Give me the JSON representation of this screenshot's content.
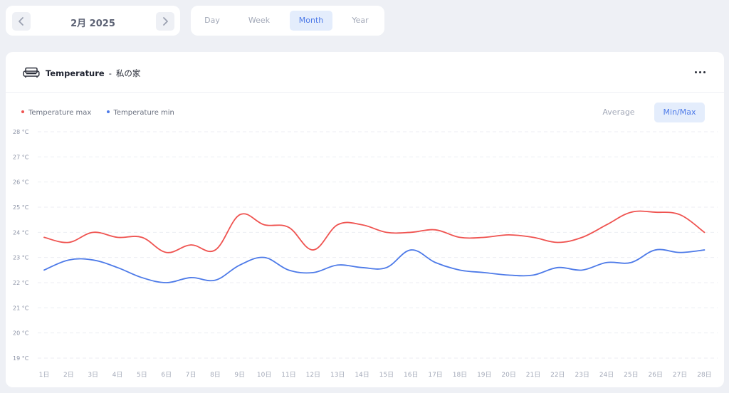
{
  "month_nav": {
    "label": "2月 2025"
  },
  "period_tabs": [
    {
      "label": "Day",
      "active": false
    },
    {
      "label": "Week",
      "active": false
    },
    {
      "label": "Month",
      "active": true
    },
    {
      "label": "Year",
      "active": false
    }
  ],
  "card": {
    "title": "Temperature",
    "separator": "-",
    "location": "私の家",
    "icon": "sofa-icon"
  },
  "mode_buttons": {
    "average": "Average",
    "minmax": "Min/Max",
    "active": "minmax"
  },
  "chart_data": {
    "type": "line",
    "x": [
      "1日",
      "2日",
      "3日",
      "4日",
      "5日",
      "6日",
      "7日",
      "8日",
      "9日",
      "10日",
      "11日",
      "12日",
      "13日",
      "14日",
      "15日",
      "16日",
      "17日",
      "18日",
      "19日",
      "20日",
      "21日",
      "22日",
      "23日",
      "24日",
      "25日",
      "26日",
      "27日",
      "28日"
    ],
    "series": [
      {
        "name": "Temperature max",
        "color": "#ef5350",
        "values": [
          23.8,
          23.6,
          24.0,
          23.8,
          23.8,
          23.2,
          23.5,
          23.3,
          24.7,
          24.3,
          24.2,
          23.3,
          24.3,
          24.3,
          24.0,
          24.0,
          24.1,
          23.8,
          23.8,
          23.9,
          23.8,
          23.6,
          23.8,
          24.3,
          24.8,
          24.8,
          24.7,
          24.0
        ]
      },
      {
        "name": "Temperature min",
        "color": "#4d7ae8",
        "values": [
          22.5,
          22.9,
          22.9,
          22.6,
          22.2,
          22.0,
          22.2,
          22.1,
          22.7,
          23.0,
          22.5,
          22.4,
          22.7,
          22.6,
          22.6,
          23.3,
          22.8,
          22.5,
          22.4,
          22.3,
          22.3,
          22.6,
          22.5,
          22.8,
          22.8,
          23.3,
          23.2,
          23.3
        ]
      }
    ],
    "yticks": [
      "19 °C",
      "20 °C",
      "21 °C",
      "22 °C",
      "23 °C",
      "24 °C",
      "25 °C",
      "26 °C",
      "27 °C",
      "28 °C"
    ],
    "ylim": [
      19,
      28
    ],
    "grid": true,
    "legend": "top-left"
  }
}
